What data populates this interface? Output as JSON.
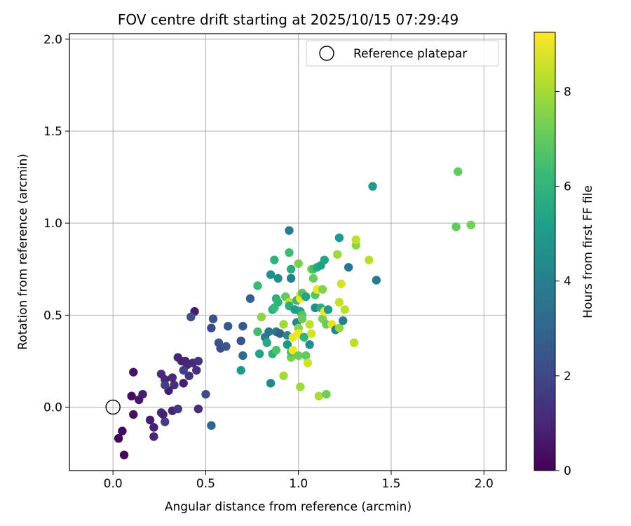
{
  "chart_data": {
    "type": "scatter",
    "title": "FOV centre drift starting at 2025/10/15 07:29:49",
    "xlabel": "Angular distance from reference (arcmin)",
    "ylabel": "Rotation from reference (arcmin)",
    "xlim": [
      -0.235,
      2.12
    ],
    "ylim": [
      -0.345,
      2.03
    ],
    "xticks": [
      0.0,
      0.5,
      1.0,
      1.5,
      2.0
    ],
    "xtick_labels": [
      "0.0",
      "0.5",
      "1.0",
      "1.5",
      "2.0"
    ],
    "yticks": [
      0.0,
      0.5,
      1.0,
      1.5,
      2.0
    ],
    "ytick_labels": [
      "0.0",
      "0.5",
      "1.0",
      "1.5",
      "2.0"
    ],
    "grid": true,
    "legend": {
      "location": "upper-right",
      "entries": [
        "Reference platepar"
      ]
    },
    "reference_point": {
      "x": 0.0,
      "y": 0.0
    },
    "colorbar": {
      "label": "Hours from first FF file",
      "colormap": "viridis",
      "range": [
        0,
        9.25
      ],
      "ticks": [
        0,
        2,
        4,
        6,
        8
      ],
      "tick_labels": [
        "0",
        "2",
        "4",
        "6",
        "8"
      ]
    },
    "points": [
      [
        0.03,
        -0.17,
        0.1
      ],
      [
        0.05,
        -0.13,
        0.2
      ],
      [
        0.06,
        -0.26,
        0.15
      ],
      [
        0.1,
        0.06,
        0.3
      ],
      [
        0.11,
        -0.04,
        0.4
      ],
      [
        0.11,
        0.19,
        0.5
      ],
      [
        0.14,
        0.04,
        0.6
      ],
      [
        0.16,
        0.07,
        0.7
      ],
      [
        0.2,
        -0.07,
        0.8
      ],
      [
        0.22,
        -0.11,
        0.9
      ],
      [
        0.22,
        -0.16,
        1.0
      ],
      [
        0.26,
        0.18,
        1.1
      ],
      [
        0.26,
        -0.03,
        1.2
      ],
      [
        0.27,
        -0.04,
        0.9
      ],
      [
        0.28,
        0.15,
        1.0
      ],
      [
        0.3,
        0.09,
        0.8
      ],
      [
        0.32,
        -0.02,
        1.0
      ],
      [
        0.32,
        0.16,
        1.1
      ],
      [
        0.33,
        0.12,
        1.2
      ],
      [
        0.35,
        0.27,
        1.0
      ],
      [
        0.37,
        0.25,
        0.9
      ],
      [
        0.38,
        0.13,
        0.8
      ],
      [
        0.39,
        0.25,
        0.9
      ],
      [
        0.4,
        0.23,
        1.0
      ],
      [
        0.41,
        0.17,
        1.4
      ],
      [
        0.43,
        0.24,
        1.1
      ],
      [
        0.44,
        0.52,
        0.7
      ],
      [
        0.45,
        0.2,
        1.2
      ],
      [
        0.46,
        0.25,
        1.3
      ],
      [
        0.46,
        -0.01,
        1.1
      ],
      [
        0.35,
        -0.01,
        1.6
      ],
      [
        0.28,
        -0.08,
        1.7
      ],
      [
        0.28,
        0.12,
        1.8
      ],
      [
        0.38,
        0.2,
        1.7
      ],
      [
        0.42,
        0.49,
        2.3
      ],
      [
        0.5,
        0.07,
        2.2
      ],
      [
        0.53,
        -0.1,
        3.0
      ],
      [
        0.53,
        0.43,
        2.1
      ],
      [
        0.54,
        0.48,
        2.4
      ],
      [
        0.57,
        0.35,
        2.4
      ],
      [
        0.58,
        0.32,
        2.2
      ],
      [
        0.61,
        0.33,
        2.6
      ],
      [
        0.62,
        0.44,
        2.6
      ],
      [
        0.69,
        0.36,
        2.5
      ],
      [
        0.7,
        0.44,
        2.6
      ],
      [
        0.7,
        0.28,
        3.2
      ],
      [
        0.74,
        0.59,
        2.8
      ],
      [
        0.69,
        0.2,
        5.0
      ],
      [
        0.78,
        0.41,
        6.4
      ],
      [
        0.78,
        0.66,
        6.3
      ],
      [
        0.79,
        0.29,
        5.3
      ],
      [
        0.8,
        0.49,
        7.6
      ],
      [
        0.82,
        0.38,
        3.9
      ],
      [
        0.83,
        0.35,
        5.5
      ],
      [
        0.84,
        0.41,
        3.6
      ],
      [
        0.85,
        0.72,
        4.6
      ],
      [
        0.85,
        0.13,
        4.3
      ],
      [
        0.86,
        0.53,
        5.7
      ],
      [
        0.86,
        0.29,
        5.8
      ],
      [
        0.87,
        0.8,
        5.9
      ],
      [
        0.87,
        0.54,
        6.2
      ],
      [
        0.88,
        0.41,
        3.8
      ],
      [
        0.88,
        0.59,
        5.8
      ],
      [
        0.88,
        0.31,
        6.6
      ],
      [
        0.89,
        0.7,
        4.5
      ],
      [
        0.89,
        0.57,
        6.0
      ],
      [
        0.9,
        0.4,
        2.8
      ],
      [
        0.92,
        0.45,
        7.9
      ],
      [
        0.92,
        0.17,
        8.0
      ],
      [
        0.93,
        0.6,
        7.0
      ],
      [
        0.94,
        0.39,
        4.3
      ],
      [
        0.94,
        0.34,
        4.8
      ],
      [
        0.95,
        0.96,
        3.8
      ],
      [
        0.95,
        0.57,
        8.4
      ],
      [
        0.95,
        0.84,
        6.3
      ],
      [
        0.95,
        0.55,
        5.7
      ],
      [
        0.96,
        0.75,
        5.6
      ],
      [
        0.96,
        0.27,
        7.3
      ],
      [
        0.96,
        0.7,
        4.0
      ],
      [
        0.96,
        0.3,
        6.6
      ],
      [
        0.97,
        0.38,
        9.0
      ],
      [
        0.97,
        0.31,
        9.1
      ],
      [
        0.98,
        0.53,
        5.1
      ],
      [
        0.99,
        0.46,
        4.3
      ],
      [
        0.99,
        0.58,
        6.2
      ],
      [
        1.0,
        0.43,
        7.6
      ],
      [
        1.0,
        0.78,
        7.4
      ],
      [
        1.0,
        0.4,
        9.0
      ],
      [
        1.0,
        0.28,
        7.2
      ],
      [
        1.01,
        0.52,
        5.3
      ],
      [
        1.01,
        0.59,
        9.2
      ],
      [
        1.01,
        0.11,
        7.9
      ],
      [
        1.01,
        0.61,
        8.9
      ],
      [
        1.02,
        0.62,
        6.8
      ],
      [
        1.02,
        0.5,
        6.8
      ],
      [
        1.02,
        0.48,
        7.1
      ],
      [
        1.03,
        0.38,
        6.0
      ],
      [
        1.04,
        0.28,
        7.0
      ],
      [
        1.04,
        0.6,
        5.4
      ],
      [
        1.05,
        0.24,
        8.6
      ],
      [
        1.06,
        0.45,
        8.4
      ],
      [
        1.06,
        0.34,
        4.6
      ],
      [
        1.07,
        0.75,
        7.5
      ],
      [
        1.07,
        0.4,
        8.7
      ],
      [
        1.08,
        0.75,
        6.5
      ],
      [
        1.08,
        0.7,
        7.1
      ],
      [
        1.09,
        0.61,
        6.8
      ],
      [
        1.09,
        0.54,
        4.4
      ],
      [
        1.1,
        0.76,
        5.6
      ],
      [
        1.1,
        0.64,
        9.0
      ],
      [
        1.11,
        0.06,
        8.1
      ],
      [
        1.12,
        0.77,
        5.2
      ],
      [
        1.12,
        0.54,
        5.7
      ],
      [
        1.13,
        0.64,
        7.5
      ],
      [
        1.13,
        0.48,
        7.4
      ],
      [
        1.14,
        0.52,
        9.1
      ],
      [
        1.14,
        0.8,
        5.4
      ],
      [
        1.15,
        0.07,
        7.2
      ],
      [
        1.15,
        0.45,
        7.1
      ],
      [
        1.16,
        0.53,
        5.0
      ],
      [
        1.18,
        0.45,
        8.9
      ],
      [
        1.2,
        0.42,
        4.2
      ],
      [
        1.21,
        0.83,
        7.9
      ],
      [
        1.22,
        0.57,
        8.5
      ],
      [
        1.22,
        0.92,
        5.0
      ],
      [
        1.22,
        0.43,
        7.7
      ],
      [
        1.23,
        0.67,
        8.7
      ],
      [
        1.24,
        0.47,
        4.0
      ],
      [
        1.25,
        0.53,
        8.3
      ],
      [
        1.27,
        0.76,
        3.7
      ],
      [
        1.3,
        0.35,
        8.3
      ],
      [
        1.31,
        0.88,
        7.6
      ],
      [
        1.31,
        0.91,
        8.4
      ],
      [
        1.38,
        0.8,
        8.3
      ],
      [
        1.4,
        1.2,
        5.0
      ],
      [
        1.42,
        0.69,
        3.9
      ],
      [
        1.85,
        0.98,
        7.0
      ],
      [
        1.86,
        1.28,
        7.0
      ],
      [
        1.93,
        0.99,
        7.3
      ]
    ]
  }
}
